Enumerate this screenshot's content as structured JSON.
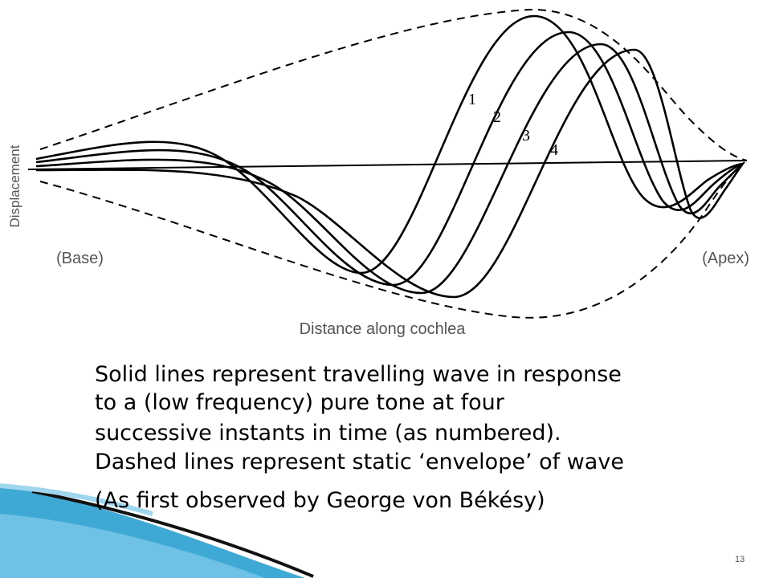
{
  "diagram": {
    "y_axis_label": "Displacement",
    "base_label": "(Base)",
    "apex_label": "(Apex)",
    "x_axis_label": "Distance along cochlea",
    "wave_labels": [
      "1",
      "2",
      "3",
      "4"
    ]
  },
  "body": {
    "lines": [
      "Solid lines represent travelling wave in response",
      "to a (low frequency) pure tone at four",
      "successive instants in time (as numbered).",
      "Dashed lines represent static ‘envelope’ of wave",
      "(As first observed by George von Békésy)"
    ]
  },
  "footer": {
    "page_number": "13"
  }
}
